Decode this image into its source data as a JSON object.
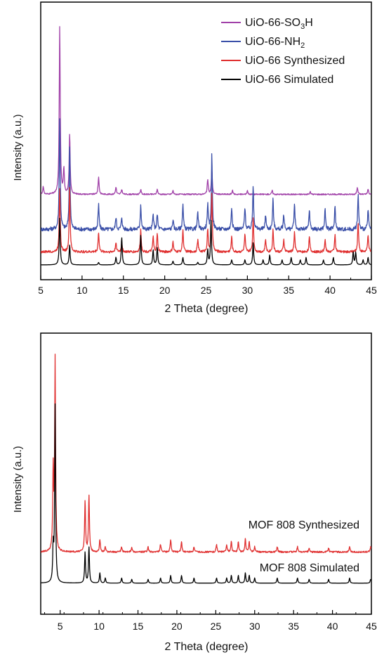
{
  "chart_data": [
    {
      "type": "line",
      "xlabel": "2 Theta (degree)",
      "ylabel": "Intensity (a.u.)",
      "xlim": [
        5,
        45
      ],
      "ylim": [
        0,
        100
      ],
      "x_ticks": [
        "5",
        "10",
        "15",
        "20",
        "25",
        "30",
        "35",
        "40",
        "45"
      ],
      "legend_position": "top-right",
      "series": [
        {
          "name": "UiO-66-SO3H",
          "legend_main": "UiO-66-SO",
          "legend_sub": "3",
          "legend_tail": "H",
          "color": "#a040a8",
          "baseline": 28.5,
          "noise": 0.25,
          "peaks": [
            [
              5.3,
              3
            ],
            [
              7.3,
              68
            ],
            [
              7.8,
              10
            ],
            [
              8.5,
              24
            ],
            [
              12.0,
              7
            ],
            [
              14.1,
              3
            ],
            [
              14.8,
              2
            ],
            [
              17.1,
              2
            ],
            [
              19.1,
              2
            ],
            [
              21.0,
              1.5
            ],
            [
              25.2,
              6
            ],
            [
              25.7,
              10
            ],
            [
              28.2,
              1.5
            ],
            [
              30.0,
              1.5
            ],
            [
              33.0,
              1.5
            ],
            [
              37.6,
              1
            ],
            [
              43.3,
              3
            ],
            [
              44.6,
              2
            ]
          ]
        },
        {
          "name": "UiO-66-NH2",
          "legend_main": "UiO-66-NH",
          "legend_sub": "2",
          "legend_tail": "",
          "color": "#3a4fa8",
          "baseline": 14.5,
          "noise": 0.8,
          "peaks": [
            [
              7.3,
              45
            ],
            [
              8.5,
              34
            ],
            [
              12.0,
              10
            ],
            [
              14.1,
              5
            ],
            [
              14.8,
              5
            ],
            [
              17.1,
              10
            ],
            [
              18.6,
              6
            ],
            [
              19.1,
              6
            ],
            [
              21.0,
              4
            ],
            [
              22.2,
              10
            ],
            [
              24.0,
              7
            ],
            [
              25.2,
              10
            ],
            [
              25.7,
              30
            ],
            [
              28.1,
              9
            ],
            [
              29.7,
              9
            ],
            [
              30.7,
              18
            ],
            [
              32.2,
              6
            ],
            [
              33.1,
              12
            ],
            [
              34.4,
              6
            ],
            [
              35.7,
              10
            ],
            [
              37.5,
              8
            ],
            [
              39.4,
              8
            ],
            [
              40.6,
              9
            ],
            [
              43.4,
              14
            ],
            [
              44.6,
              8
            ]
          ]
        },
        {
          "name": "UiO-66 Synthesized",
          "color": "#e03030",
          "baseline": 5.5,
          "noise": 0.5,
          "peaks": [
            [
              7.3,
              26
            ],
            [
              8.5,
              26
            ],
            [
              12.0,
              8
            ],
            [
              14.1,
              4
            ],
            [
              14.8,
              4
            ],
            [
              17.1,
              9
            ],
            [
              18.6,
              6
            ],
            [
              19.1,
              7
            ],
            [
              21.0,
              4
            ],
            [
              22.2,
              9
            ],
            [
              24.0,
              5
            ],
            [
              25.2,
              9
            ],
            [
              25.7,
              24
            ],
            [
              28.1,
              6
            ],
            [
              29.7,
              7
            ],
            [
              30.7,
              14
            ],
            [
              32.2,
              5
            ],
            [
              33.1,
              9
            ],
            [
              34.4,
              5
            ],
            [
              35.7,
              8
            ],
            [
              37.5,
              6
            ],
            [
              39.4,
              5
            ],
            [
              40.6,
              7
            ],
            [
              43.4,
              12
            ],
            [
              44.6,
              7
            ]
          ]
        },
        {
          "name": "UiO-66 Simulated",
          "color": "#000000",
          "baseline": 0.3,
          "noise": 0,
          "peaks": [
            [
              7.3,
              19
            ],
            [
              8.5,
              8
            ],
            [
              12.0,
              1
            ],
            [
              14.1,
              3
            ],
            [
              14.8,
              11
            ],
            [
              17.1,
              12
            ],
            [
              18.6,
              6
            ],
            [
              19.1,
              7
            ],
            [
              21.0,
              1.5
            ],
            [
              22.2,
              3
            ],
            [
              24.0,
              1
            ],
            [
              25.2,
              6
            ],
            [
              25.6,
              18
            ],
            [
              28.1,
              2
            ],
            [
              29.7,
              2
            ],
            [
              30.7,
              9
            ],
            [
              31.9,
              2
            ],
            [
              32.7,
              4
            ],
            [
              34.2,
              2
            ],
            [
              35.3,
              3
            ],
            [
              36.4,
              2
            ],
            [
              37.1,
              3
            ],
            [
              39.2,
              2
            ],
            [
              40.4,
              3
            ],
            [
              42.8,
              5
            ],
            [
              43.1,
              5
            ],
            [
              44.0,
              2
            ],
            [
              44.6,
              3
            ]
          ]
        }
      ]
    },
    {
      "type": "line",
      "xlabel": "2 Theta (degree)",
      "ylabel": "Intensity (a.u.)",
      "xlim": [
        2.5,
        45
      ],
      "ylim": [
        0,
        100
      ],
      "x_ticks": [
        "5",
        "10",
        "15",
        "20",
        "25",
        "30",
        "35",
        "40",
        "45"
      ],
      "series": [
        {
          "name": "MOF 808 Synthesized",
          "color": "#e03030",
          "baseline": 18,
          "noise": 0.3,
          "peaks": [
            [
              4.1,
              31
            ],
            [
              4.35,
              74
            ],
            [
              8.2,
              20
            ],
            [
              8.7,
              22
            ],
            [
              10.1,
              5
            ],
            [
              10.8,
              2
            ],
            [
              12.9,
              2
            ],
            [
              14.2,
              2
            ],
            [
              16.3,
              2
            ],
            [
              17.9,
              3
            ],
            [
              19.2,
              5
            ],
            [
              20.6,
              4
            ],
            [
              22.2,
              2
            ],
            [
              25.1,
              3
            ],
            [
              26.4,
              3
            ],
            [
              27.0,
              4
            ],
            [
              27.9,
              4
            ],
            [
              28.8,
              5
            ],
            [
              29.3,
              4
            ],
            [
              30.0,
              2
            ],
            [
              32.9,
              2
            ],
            [
              35.5,
              2
            ],
            [
              37.0,
              1.5
            ],
            [
              39.5,
              1.5
            ],
            [
              42.2,
              2
            ],
            [
              44.9,
              2
            ]
          ]
        },
        {
          "name": "MOF 808 Simulated",
          "color": "#000000",
          "baseline": 6,
          "noise": 0,
          "peaks": [
            [
              4.1,
              13
            ],
            [
              4.35,
              68
            ],
            [
              8.2,
              12
            ],
            [
              8.7,
              14
            ],
            [
              10.1,
              4
            ],
            [
              10.8,
              2
            ],
            [
              12.9,
              2
            ],
            [
              14.2,
              1.5
            ],
            [
              16.3,
              1.5
            ],
            [
              17.9,
              2
            ],
            [
              19.2,
              3
            ],
            [
              20.6,
              3
            ],
            [
              22.2,
              2
            ],
            [
              25.1,
              2
            ],
            [
              26.4,
              2
            ],
            [
              27.0,
              3
            ],
            [
              27.9,
              3
            ],
            [
              28.8,
              4
            ],
            [
              29.3,
              3
            ],
            [
              30.0,
              2
            ],
            [
              32.9,
              2
            ],
            [
              35.5,
              2
            ],
            [
              37.0,
              1.5
            ],
            [
              39.5,
              1.5
            ],
            [
              42.2,
              2
            ],
            [
              44.9,
              1.5
            ]
          ]
        }
      ]
    }
  ]
}
